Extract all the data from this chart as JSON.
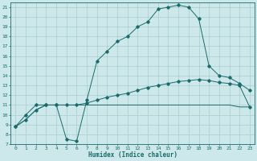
{
  "xlabel": "Humidex (Indice chaleur)",
  "bg_color": "#cce8ea",
  "grid_color": "#aacccc",
  "line_color": "#1a6b6b",
  "xlim": [
    -0.5,
    23.5
  ],
  "ylim": [
    7,
    21.5
  ],
  "xticks": [
    0,
    1,
    2,
    3,
    4,
    5,
    6,
    7,
    8,
    9,
    10,
    11,
    12,
    13,
    14,
    15,
    16,
    17,
    18,
    19,
    20,
    21,
    22,
    23
  ],
  "yticks": [
    7,
    8,
    9,
    10,
    11,
    12,
    13,
    14,
    15,
    16,
    17,
    18,
    19,
    20,
    21
  ],
  "line1_x": [
    0,
    1,
    2,
    3,
    4,
    5,
    6,
    7,
    8,
    9,
    10,
    11,
    12,
    13,
    14,
    15,
    16,
    17,
    18,
    19,
    20,
    21,
    22,
    23
  ],
  "line1_y": [
    8.8,
    10.0,
    11.0,
    11.0,
    11.0,
    7.5,
    7.3,
    11.5,
    15.5,
    16.5,
    17.5,
    18.0,
    19.0,
    19.5,
    20.8,
    21.0,
    21.2,
    21.0,
    19.8,
    15.0,
    14.0,
    13.8,
    13.2,
    12.5
  ],
  "line2_x": [
    0,
    1,
    2,
    3,
    4,
    5,
    6,
    7,
    8,
    9,
    10,
    11,
    12,
    13,
    14,
    15,
    16,
    17,
    18,
    19,
    20,
    21,
    22,
    23
  ],
  "line2_y": [
    8.8,
    9.5,
    10.5,
    11.0,
    11.0,
    11.0,
    11.0,
    11.2,
    11.5,
    11.8,
    12.0,
    12.2,
    12.5,
    12.8,
    13.0,
    13.2,
    13.4,
    13.5,
    13.6,
    13.5,
    13.3,
    13.2,
    13.0,
    10.8
  ],
  "line3_x": [
    0,
    1,
    2,
    3,
    4,
    5,
    6,
    7,
    8,
    9,
    10,
    11,
    12,
    13,
    14,
    15,
    16,
    17,
    18,
    19,
    20,
    21,
    22,
    23
  ],
  "line3_y": [
    8.8,
    9.5,
    10.5,
    11.0,
    11.0,
    11.0,
    11.0,
    11.0,
    11.0,
    11.0,
    11.0,
    11.0,
    11.0,
    11.0,
    11.0,
    11.0,
    11.0,
    11.0,
    11.0,
    11.0,
    11.0,
    11.0,
    10.8,
    10.8
  ]
}
